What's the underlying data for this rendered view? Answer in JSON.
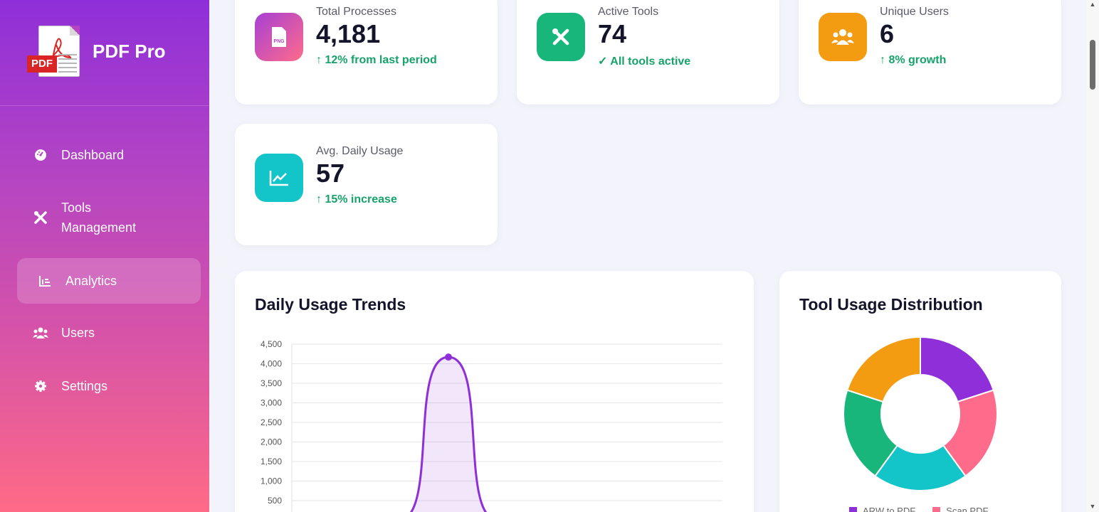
{
  "brand": {
    "name": "PDF Pro",
    "logo_tag": "PDF"
  },
  "nav": [
    {
      "label": "Dashboard",
      "icon": "gauge-icon",
      "active": false
    },
    {
      "label": "Tools\nManagement",
      "icon": "tools-icon",
      "active": false
    },
    {
      "label": "Analytics",
      "icon": "chart-bar-icon",
      "active": true
    },
    {
      "label": "Users",
      "icon": "users-icon",
      "active": false
    },
    {
      "label": "Settings",
      "icon": "gear-icon",
      "active": false
    }
  ],
  "stats": [
    {
      "label": "Total Processes",
      "value": "4,181",
      "delta": "↑ 12% from last period",
      "icon": "png-file-icon",
      "color": "#a63fd4"
    },
    {
      "label": "Active Tools",
      "value": "74",
      "delta": "✓ All tools active",
      "icon": "tools-icon",
      "color": "#18b67b"
    },
    {
      "label": "Unique Users",
      "value": "6",
      "delta": "↑ 8% growth",
      "icon": "users-icon",
      "color": "#f39c12"
    },
    {
      "label": "Avg. Daily Usage",
      "value": "57",
      "delta": "↑ 15% increase",
      "icon": "line-chart-icon",
      "color": "#13c4c8"
    }
  ],
  "charts": {
    "usage_title": "Daily Usage Trends",
    "distribution_title": "Tool Usage Distribution"
  },
  "chart_data": [
    {
      "type": "area",
      "title": "Daily Usage Trends",
      "yticks": [
        "4,500",
        "4,000",
        "3,500",
        "3,000",
        "2,500",
        "2,000",
        "1,500",
        "1,000",
        "500"
      ],
      "ylim": [
        0,
        4500
      ],
      "series": [
        {
          "values": [
            0,
            0,
            4170,
            0,
            0,
            0,
            0,
            0,
            0,
            0,
            0
          ],
          "color": "#8f2fd9"
        }
      ],
      "grid": true
    },
    {
      "type": "pie",
      "title": "Tool Usage Distribution",
      "slices": [
        {
          "label": "ARW to PDF",
          "value": 20,
          "color": "#8f2fd9"
        },
        {
          "label": "Scan PDF",
          "value": 20,
          "color": "#ff6b8a"
        },
        {
          "label": "",
          "value": 20,
          "color": "#13c4c8"
        },
        {
          "label": "",
          "value": 20,
          "color": "#18b67b"
        },
        {
          "label": "",
          "value": 20,
          "color": "#f39c12"
        }
      ],
      "legend": "bottom"
    }
  ]
}
